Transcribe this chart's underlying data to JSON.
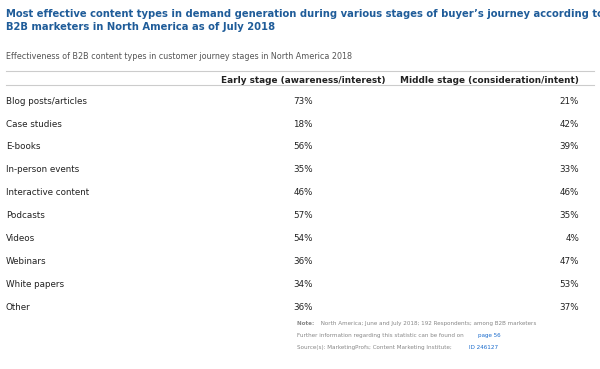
{
  "title_line1": "Most effective content types in demand generation during various stages of buyer’s journey according to",
  "title_line2": "B2B marketers in North America as of July 2018",
  "subtitle": "Effectiveness of B2B content types in customer journey stages in North America 2018",
  "col1_header": "Early stage (awareness/interest)",
  "col2_header": "Middle stage (consideration/intent)",
  "categories": [
    "Blog posts/articles",
    "Case studies",
    "E-books",
    "In-person events",
    "Interactive content",
    "Podcasts",
    "Videos",
    "Webinars",
    "White papers",
    "Other"
  ],
  "early_stage": [
    "73%",
    "18%",
    "56%",
    "35%",
    "46%",
    "57%",
    "54%",
    "36%",
    "34%",
    "36%"
  ],
  "middle_stage": [
    "21%",
    "42%",
    "39%",
    "33%",
    "46%",
    "35%",
    "4%",
    "47%",
    "53%",
    "37%"
  ],
  "title_color": "#1F5C99",
  "subtitle_color": "#555555",
  "header_color": "#222222",
  "row_text_color": "#222222",
  "value_color": "#222222",
  "note_color": "#888888",
  "link_color": "#1a6bcc",
  "bg_color": "#ffffff",
  "line_color": "#cccccc",
  "note_bold_label": "Note: ",
  "note_body": " North America; June and July 2018; 192 Respondents; among B2B marketers",
  "note_line2_pre": "Further information regarding this statistic can be found on ",
  "note_line2_link": "page 56",
  "note_line3_pre": "Source(s): MarketingProfs; Content Marketing Institute;  ",
  "note_line3_link": "ID 246127"
}
